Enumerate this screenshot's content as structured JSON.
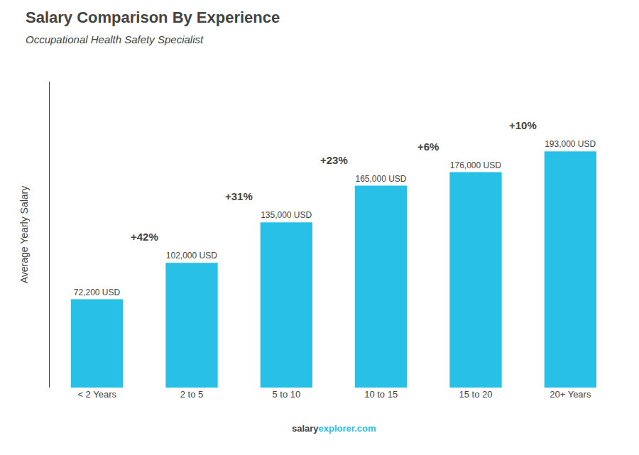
{
  "chart_data": {
    "type": "bar",
    "title": "Salary Comparison By Experience",
    "subtitle": "Occupational Health Safety Specialist",
    "categories": [
      "< 2 Years",
      "2 to 5",
      "5 to 10",
      "10 to 15",
      "15 to 20",
      "20+ Years"
    ],
    "values": [
      72200,
      102000,
      135000,
      165000,
      176000,
      193000
    ],
    "value_labels": [
      "72,200 USD",
      "102,000 USD",
      "135,000 USD",
      "165,000 USD",
      "176,000 USD",
      "193,000 USD"
    ],
    "data_labels": true,
    "color": "#29C0E8",
    "ylabel": "Average Yearly Salary",
    "ylim": [
      0,
      250000
    ],
    "tick_labels": "x",
    "grid": false,
    "annotations": [
      "+42%",
      "+31%",
      "+23%",
      "+6%",
      "+10%"
    ],
    "source": [
      "salary",
      "explorer.com"
    ]
  }
}
